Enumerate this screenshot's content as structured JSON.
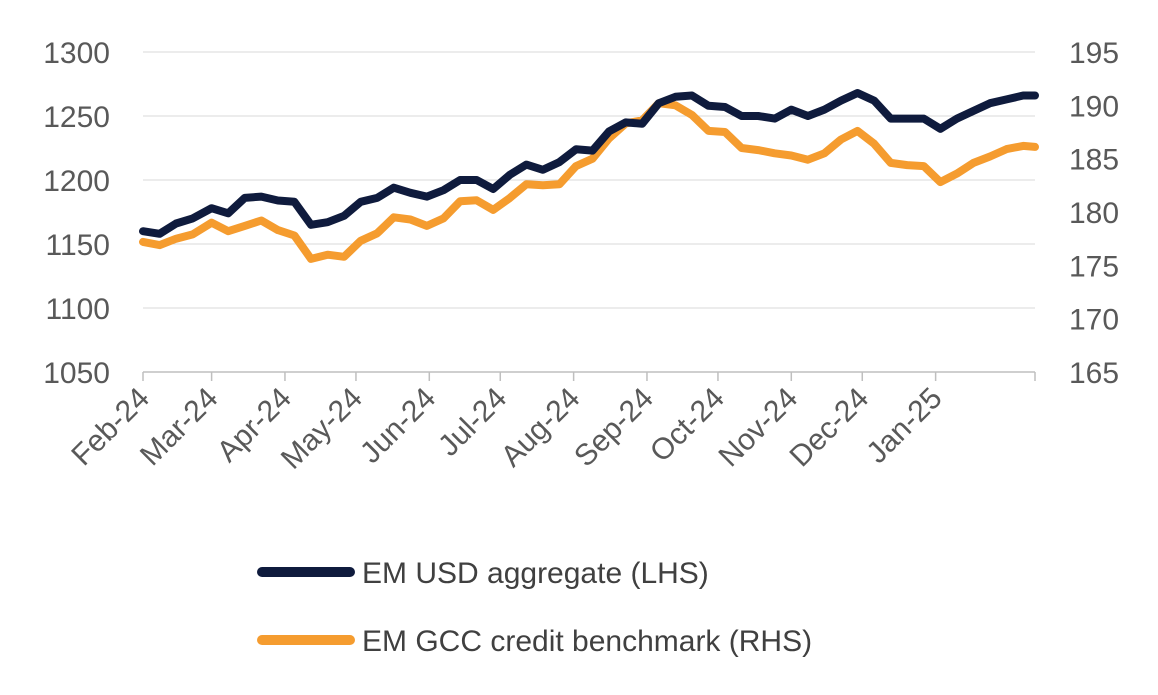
{
  "chart_data": {
    "type": "line",
    "title": "",
    "xlabel": "",
    "ylabel": "",
    "x_tick_labels": [
      "Feb-24",
      "Mar-24",
      "Apr-24",
      "May-24",
      "Jun-24",
      "Jul-24",
      "Aug-24",
      "Sep-24",
      "Oct-24",
      "Nov-24",
      "Dec-24",
      "Jan-25"
    ],
    "x_range": [
      "2024-02-01",
      "2025-02-12"
    ],
    "ylim_left": [
      1050,
      1300
    ],
    "yticks_left": [
      1050,
      1100,
      1150,
      1200,
      1250,
      1300
    ],
    "ylim_right": [
      165,
      195
    ],
    "yticks_right": [
      165,
      170,
      175,
      180,
      185,
      190,
      195
    ],
    "grid": "horizontal",
    "legend_position": "bottom",
    "series": [
      {
        "name": "EM USD aggregate (LHS)",
        "axis": "left",
        "color": "#0f1b3d",
        "points": [
          [
            "2024-02-01",
            1160
          ],
          [
            "2024-02-08",
            1158
          ],
          [
            "2024-02-15",
            1166
          ],
          [
            "2024-02-22",
            1170
          ],
          [
            "2024-03-01",
            1178
          ],
          [
            "2024-03-08",
            1174
          ],
          [
            "2024-03-15",
            1186
          ],
          [
            "2024-03-22",
            1187
          ],
          [
            "2024-03-29",
            1184
          ],
          [
            "2024-04-05",
            1183
          ],
          [
            "2024-04-12",
            1165
          ],
          [
            "2024-04-19",
            1167
          ],
          [
            "2024-04-26",
            1172
          ],
          [
            "2024-05-03",
            1183
          ],
          [
            "2024-05-10",
            1186
          ],
          [
            "2024-05-17",
            1194
          ],
          [
            "2024-05-24",
            1190
          ],
          [
            "2024-05-31",
            1187
          ],
          [
            "2024-06-07",
            1192
          ],
          [
            "2024-06-14",
            1200
          ],
          [
            "2024-06-21",
            1200
          ],
          [
            "2024-06-28",
            1193
          ],
          [
            "2024-07-05",
            1204
          ],
          [
            "2024-07-12",
            1212
          ],
          [
            "2024-07-19",
            1208
          ],
          [
            "2024-07-26",
            1214
          ],
          [
            "2024-08-02",
            1224
          ],
          [
            "2024-08-09",
            1223
          ],
          [
            "2024-08-16",
            1238
          ],
          [
            "2024-08-23",
            1245
          ],
          [
            "2024-08-30",
            1244
          ],
          [
            "2024-09-06",
            1260
          ],
          [
            "2024-09-13",
            1265
          ],
          [
            "2024-09-20",
            1266
          ],
          [
            "2024-09-27",
            1258
          ],
          [
            "2024-10-04",
            1257
          ],
          [
            "2024-10-11",
            1250
          ],
          [
            "2024-10-18",
            1250
          ],
          [
            "2024-10-25",
            1248
          ],
          [
            "2024-11-01",
            1255
          ],
          [
            "2024-11-08",
            1250
          ],
          [
            "2024-11-15",
            1255
          ],
          [
            "2024-11-22",
            1262
          ],
          [
            "2024-11-29",
            1268
          ],
          [
            "2024-12-06",
            1262
          ],
          [
            "2024-12-13",
            1248
          ],
          [
            "2024-12-20",
            1248
          ],
          [
            "2024-12-27",
            1248
          ],
          [
            "2025-01-03",
            1240
          ],
          [
            "2025-01-10",
            1248
          ],
          [
            "2025-01-17",
            1254
          ],
          [
            "2025-01-24",
            1260
          ],
          [
            "2025-01-31",
            1263
          ],
          [
            "2025-02-07",
            1266
          ],
          [
            "2025-02-12",
            1266
          ]
        ]
      },
      {
        "name": "EM GCC credit benchmark (RHS)",
        "axis": "right",
        "color": "#f59c2f",
        "points": [
          [
            "2024-02-01",
            177.2
          ],
          [
            "2024-02-08",
            176.9
          ],
          [
            "2024-02-15",
            177.5
          ],
          [
            "2024-02-22",
            177.9
          ],
          [
            "2024-03-01",
            179.0
          ],
          [
            "2024-03-08",
            178.2
          ],
          [
            "2024-03-15",
            178.7
          ],
          [
            "2024-03-22",
            179.2
          ],
          [
            "2024-03-29",
            178.3
          ],
          [
            "2024-04-05",
            177.8
          ],
          [
            "2024-04-12",
            175.6
          ],
          [
            "2024-04-19",
            176.0
          ],
          [
            "2024-04-26",
            175.8
          ],
          [
            "2024-05-03",
            177.3
          ],
          [
            "2024-05-10",
            178.0
          ],
          [
            "2024-05-17",
            179.5
          ],
          [
            "2024-05-24",
            179.3
          ],
          [
            "2024-05-31",
            178.7
          ],
          [
            "2024-06-07",
            179.4
          ],
          [
            "2024-06-14",
            181.0
          ],
          [
            "2024-06-21",
            181.1
          ],
          [
            "2024-06-28",
            180.2
          ],
          [
            "2024-07-05",
            181.3
          ],
          [
            "2024-07-12",
            182.6
          ],
          [
            "2024-07-19",
            182.5
          ],
          [
            "2024-07-26",
            182.6
          ],
          [
            "2024-08-02",
            184.3
          ],
          [
            "2024-08-09",
            185.0
          ],
          [
            "2024-08-16",
            186.9
          ],
          [
            "2024-08-23",
            188.3
          ],
          [
            "2024-08-30",
            188.6
          ],
          [
            "2024-09-06",
            190.2
          ],
          [
            "2024-09-13",
            190.0
          ],
          [
            "2024-09-20",
            189.1
          ],
          [
            "2024-09-27",
            187.6
          ],
          [
            "2024-10-04",
            187.5
          ],
          [
            "2024-10-11",
            186.0
          ],
          [
            "2024-10-18",
            185.8
          ],
          [
            "2024-10-25",
            185.5
          ],
          [
            "2024-11-01",
            185.3
          ],
          [
            "2024-11-08",
            184.9
          ],
          [
            "2024-11-15",
            185.5
          ],
          [
            "2024-11-22",
            186.8
          ],
          [
            "2024-11-29",
            187.6
          ],
          [
            "2024-12-06",
            186.4
          ],
          [
            "2024-12-13",
            184.6
          ],
          [
            "2024-12-20",
            184.4
          ],
          [
            "2024-12-27",
            184.3
          ],
          [
            "2025-01-03",
            182.8
          ],
          [
            "2025-01-10",
            183.6
          ],
          [
            "2025-01-17",
            184.6
          ],
          [
            "2025-01-24",
            185.2
          ],
          [
            "2025-01-31",
            185.9
          ],
          [
            "2025-02-07",
            186.2
          ],
          [
            "2025-02-12",
            186.1
          ]
        ]
      }
    ]
  }
}
